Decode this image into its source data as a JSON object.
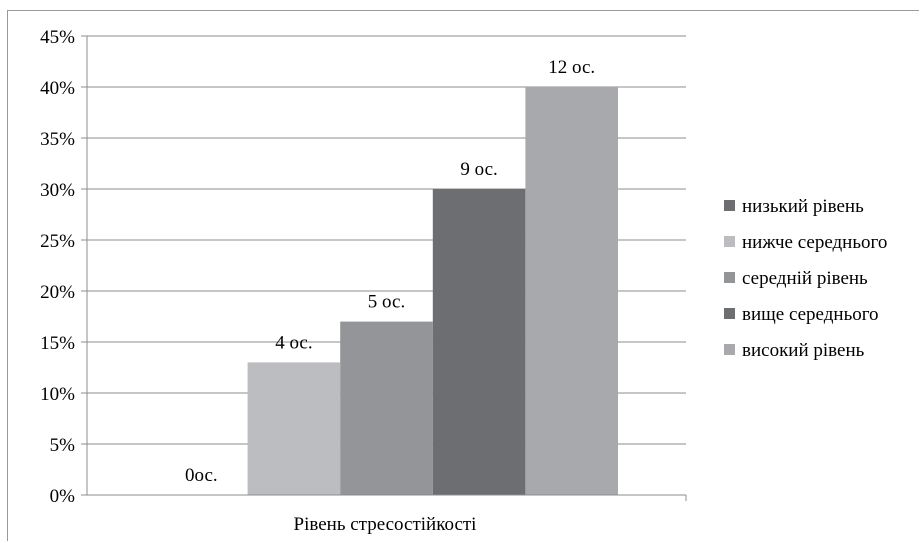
{
  "chart_data": {
    "type": "bar",
    "categories": [
      "Рівень стресостійкості"
    ],
    "xlabel": "Рівень стресостійкості",
    "ylabel": "",
    "ylim": [
      0,
      45
    ],
    "yticks": [
      0,
      5,
      10,
      15,
      20,
      25,
      30,
      35,
      40,
      45
    ],
    "yticks_labels": [
      "0%",
      "5%",
      "10%",
      "15%",
      "20%",
      "25%",
      "30%",
      "35%",
      "40%",
      "45%"
    ],
    "grid": true,
    "legend_position": "right",
    "series": [
      {
        "name": "низький рівень",
        "value": 0,
        "label": "0ос.",
        "color": "#6d6e71"
      },
      {
        "name": "нижче середнього",
        "value": 13,
        "label": "4 ос.",
        "color": "#bcbdc0"
      },
      {
        "name": "середній рівень",
        "value": 17,
        "label": "5 ос.",
        "color": "#939598"
      },
      {
        "name": "вище середнього",
        "value": 30,
        "label": "9 ос.",
        "color": "#6d6e71"
      },
      {
        "name": "високий рівень",
        "value": 40,
        "label": "12 ос.",
        "color": "#a7a9ac"
      }
    ]
  }
}
